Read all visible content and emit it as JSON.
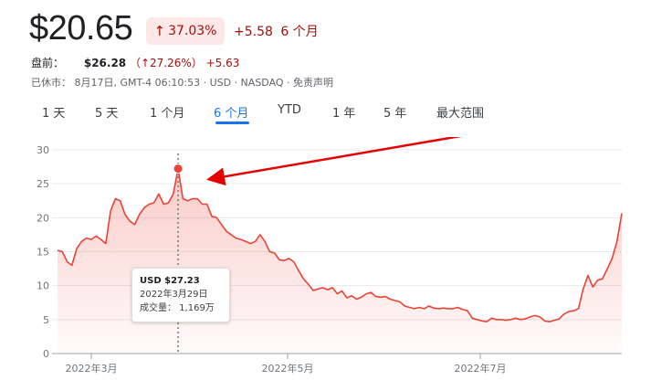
{
  "quote": {
    "price": "$20.65",
    "change_pct": "37.03%",
    "change_abs": "+5.58",
    "period": "6 个月"
  },
  "premarket": {
    "label": "盘前：",
    "price": "$26.28",
    "change_pct_text": "（↑27.26%）",
    "change_abs": "+5.63"
  },
  "meta": {
    "text": "已休市：  8月17日, GMT-4 06:10:53 · USD · NASDAQ · 免责声明"
  },
  "range_tabs": [
    {
      "label": "1 天"
    },
    {
      "label": "5 天"
    },
    {
      "label": "1 个月"
    },
    {
      "label": "6 个月"
    },
    {
      "label": "YTD"
    },
    {
      "label": "1 年"
    },
    {
      "label": "5 年"
    },
    {
      "label": "最大范围"
    }
  ],
  "active_tab": "6 个月",
  "tooltip": {
    "price": "USD $27.23",
    "date": "2022年3月29日",
    "volume": "成交量：  1,169万"
  },
  "colors": {
    "line": "#ea4335",
    "negative": "#a50e0e",
    "accent": "#1a73e8",
    "annotation_arrow": "#e50000"
  },
  "chart_data": {
    "type": "area",
    "title": "",
    "xlabel": "",
    "ylabel": "",
    "ylim": [
      0,
      30
    ],
    "yticks": [
      0,
      5,
      10,
      15,
      20,
      25,
      30
    ],
    "xtick_labels": [
      "2022年3月",
      "2022年5月",
      "2022年7月"
    ],
    "series": [
      {
        "values": [
          15.2,
          15,
          13.5,
          13,
          15.5,
          16.5,
          17,
          16.8,
          17.3,
          16.8,
          16.2,
          21,
          22.8,
          22.5,
          20.5,
          19.5,
          19,
          20.5,
          21.5,
          22,
          22.2,
          23.5,
          22,
          22.2,
          23.5,
          27.23,
          22.8,
          22.5,
          22.8,
          22.8,
          22,
          22,
          20.2,
          20,
          19,
          18,
          17.5,
          17,
          16.8,
          16.5,
          16.2,
          16.5,
          17.5,
          16.5,
          15,
          14.8,
          13.8,
          13.7,
          14,
          13.5,
          12.2,
          11,
          10.2,
          9.3,
          9.5,
          9.7,
          9.4,
          9.7,
          8.8,
          9.2,
          8.2,
          8.5,
          8,
          8.3,
          8.8,
          9,
          8.4,
          8.3,
          8.4,
          8,
          7.8,
          7.6,
          7,
          6.8,
          6.6,
          6.8,
          6.6,
          7,
          6.7,
          6.6,
          6.7,
          6.6,
          6.6,
          6.8,
          6.5,
          6.3,
          5.2,
          5,
          4.8,
          4.7,
          5.2,
          5,
          5,
          4.9,
          5,
          5.2,
          5,
          5.1,
          5.4,
          5.6,
          5.4,
          4.8,
          4.7,
          4.9,
          5.1,
          5.8,
          6.2,
          6.3,
          6.6,
          9.5,
          11.5,
          9.8,
          10.8,
          11,
          12.5,
          14,
          16.5,
          20.65
        ]
      }
    ],
    "highlight": {
      "date": "2022年3月29日",
      "value": 27.23
    }
  }
}
